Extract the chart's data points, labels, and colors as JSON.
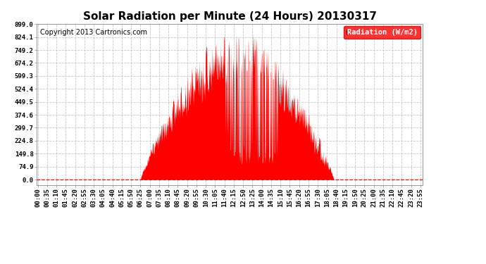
{
  "title": "Solar Radiation per Minute (24 Hours) 20130317",
  "copyright_text": "Copyright 2013 Cartronics.com",
  "legend_label": "Radiation (W/m2)",
  "ylabel_ticks": [
    0.0,
    74.9,
    149.8,
    224.8,
    299.7,
    374.6,
    449.5,
    524.4,
    599.3,
    674.2,
    749.2,
    824.1,
    899.0
  ],
  "y_max": 899.0,
  "fill_color": "#ff0000",
  "bg_color": "#ffffff",
  "grid_color": "#c8c8c8",
  "dashed_line_color": "#ff0000",
  "title_fontsize": 11,
  "tick_fontsize": 6.5,
  "legend_fontsize": 7.5,
  "copyright_fontsize": 7,
  "sunrise_min": 385,
  "sunset_min": 1110,
  "peak_val": 899.0,
  "seed": 12345
}
